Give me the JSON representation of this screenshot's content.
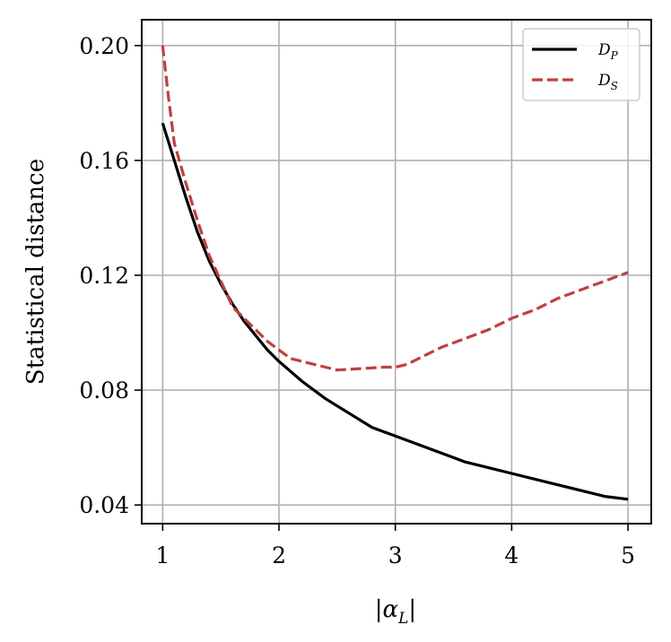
{
  "chart_data": {
    "type": "line",
    "xlabel": "|α",
    "xlabel_sub": "L",
    "xlabel_close": "|",
    "ylabel": "Statistical distance",
    "xlim": [
      0.82,
      5.2
    ],
    "ylim": [
      0.0335,
      0.209
    ],
    "x_ticks": [
      1,
      2,
      3,
      4,
      5
    ],
    "y_ticks": [
      0.04,
      0.08,
      0.12,
      0.16,
      0.2
    ],
    "x_tick_labels": [
      "1",
      "2",
      "3",
      "4",
      "5"
    ],
    "y_tick_labels": [
      "0.04",
      "0.08",
      "0.12",
      "0.16",
      "0.20"
    ],
    "grid": true,
    "legend_position": "top-right",
    "series": [
      {
        "name": "D",
        "name_sub": "P",
        "color": "#000000",
        "dash": "solid",
        "x": [
          1.0,
          1.1,
          1.2,
          1.3,
          1.4,
          1.5,
          1.6,
          1.7,
          1.8,
          1.9,
          2.0,
          2.2,
          2.4,
          2.6,
          2.8,
          3.0,
          3.2,
          3.4,
          3.6,
          3.8,
          4.0,
          4.2,
          4.4,
          4.6,
          4.8,
          5.0
        ],
        "y": [
          0.173,
          0.16,
          0.147,
          0.135,
          0.125,
          0.117,
          0.11,
          0.104,
          0.099,
          0.094,
          0.09,
          0.083,
          0.077,
          0.072,
          0.067,
          0.064,
          0.061,
          0.058,
          0.055,
          0.053,
          0.051,
          0.049,
          0.047,
          0.045,
          0.043,
          0.042
        ]
      },
      {
        "name": "D",
        "name_sub": "S",
        "color": "#c04040",
        "dash": "dashed",
        "x": [
          1.0,
          1.05,
          1.1,
          1.2,
          1.3,
          1.4,
          1.5,
          1.6,
          1.7,
          1.8,
          1.9,
          2.0,
          2.1,
          2.3,
          2.5,
          2.7,
          2.9,
          3.0,
          3.1,
          3.2,
          3.4,
          3.6,
          3.8,
          4.0,
          4.2,
          4.4,
          4.6,
          4.8,
          5.0
        ],
        "y": [
          0.2,
          0.182,
          0.166,
          0.152,
          0.139,
          0.127,
          0.118,
          0.109,
          0.105,
          0.101,
          0.097,
          0.094,
          0.091,
          0.089,
          0.087,
          0.0875,
          0.088,
          0.088,
          0.089,
          0.091,
          0.095,
          0.098,
          0.101,
          0.105,
          0.108,
          0.112,
          0.115,
          0.118,
          0.121
        ]
      }
    ]
  }
}
